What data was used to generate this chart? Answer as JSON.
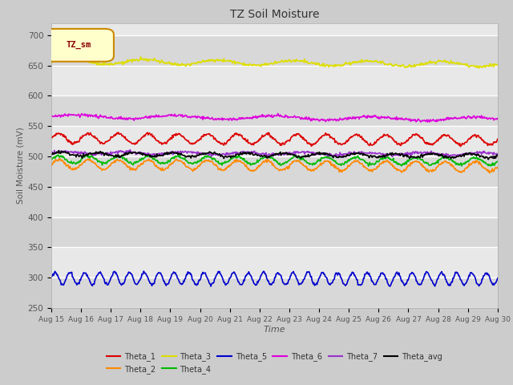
{
  "title": "TZ Soil Moisture",
  "xlabel": "Time",
  "ylabel": "Soil Moisture (mV)",
  "ylim": [
    250,
    720
  ],
  "yticks": [
    250,
    300,
    350,
    400,
    450,
    500,
    550,
    600,
    650,
    700
  ],
  "xstart_day": 15,
  "xend_day": 30,
  "n_days": 15,
  "points_per_day": 48,
  "background_color": "#cccccc",
  "plot_bg_color": "#e8e8e8",
  "legend_label": "TZ_sm",
  "series": [
    {
      "name": "Theta_1",
      "color": "#dd0000",
      "base": 530,
      "amplitude": 8,
      "trend": -3.0,
      "freq_per_day": 1.0
    },
    {
      "name": "Theta_2",
      "color": "#ff8800",
      "base": 487,
      "amplitude": 8,
      "trend": -4.0,
      "freq_per_day": 1.0
    },
    {
      "name": "Theta_3",
      "color": "#dddd00",
      "base": 657,
      "amplitude": 4,
      "trend": -5.0,
      "freq_per_day": 0.4
    },
    {
      "name": "Theta_4",
      "color": "#00bb00",
      "base": 495,
      "amplitude": 6,
      "trend": -3.0,
      "freq_per_day": 1.0
    },
    {
      "name": "Theta_5",
      "color": "#0000cc",
      "base": 299,
      "amplitude": 10,
      "trend": -1.0,
      "freq_per_day": 2.0
    },
    {
      "name": "Theta_6",
      "color": "#dd00dd",
      "base": 566,
      "amplitude": 3,
      "trend": -4.5,
      "freq_per_day": 0.3
    },
    {
      "name": "Theta_7",
      "color": "#9933cc",
      "base": 506,
      "amplitude": 2,
      "trend": -2.0,
      "freq_per_day": 0.5
    },
    {
      "name": "Theta_avg",
      "color": "#000000",
      "base": 504,
      "amplitude": 3,
      "trend": -3.0,
      "freq_per_day": 0.8
    }
  ]
}
